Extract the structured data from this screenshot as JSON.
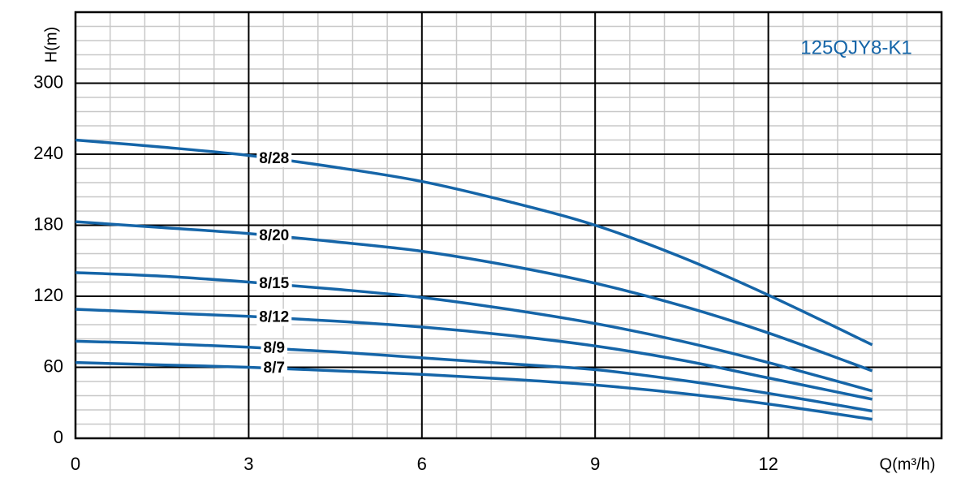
{
  "chart_data": {
    "type": "line",
    "title": "125QJY8-K1",
    "x_label": "Q(m³/h)",
    "y_label": "H(m)",
    "x": [
      0,
      1.5,
      3,
      4.5,
      6,
      7.5,
      9,
      10.5,
      12,
      13.8
    ],
    "series": [
      {
        "name": "8/28",
        "color": "#1565a8",
        "values": [
          252,
          246,
          239,
          229,
          217,
          200,
          180,
          153,
          121,
          79
        ]
      },
      {
        "name": "8/20",
        "color": "#1565a8",
        "values": [
          183,
          178,
          173,
          166,
          158,
          146,
          131,
          112,
          89,
          57
        ]
      },
      {
        "name": "8/15",
        "color": "#1565a8",
        "values": [
          140,
          137,
          132,
          126,
          119,
          109,
          97,
          82,
          64,
          40
        ]
      },
      {
        "name": "8/12",
        "color": "#1565a8",
        "values": [
          109,
          106,
          103,
          99,
          94,
          87,
          78,
          66,
          51,
          33
        ]
      },
      {
        "name": "8/9",
        "color": "#1565a8",
        "values": [
          82,
          80,
          77,
          73,
          68,
          63,
          58,
          49,
          38,
          23
        ]
      },
      {
        "name": "8/7",
        "color": "#1565a8",
        "values": [
          64,
          62,
          60,
          57,
          54,
          50,
          45,
          38,
          29,
          16
        ]
      }
    ],
    "xlim": [
      0,
      15
    ],
    "ylim": [
      0,
      360
    ],
    "xticks": [
      0,
      3,
      6,
      9,
      12
    ],
    "yticks": [
      0,
      60,
      120,
      180,
      240,
      300
    ],
    "grid": true,
    "minor_grid": true,
    "title_color": "#1565a8"
  }
}
